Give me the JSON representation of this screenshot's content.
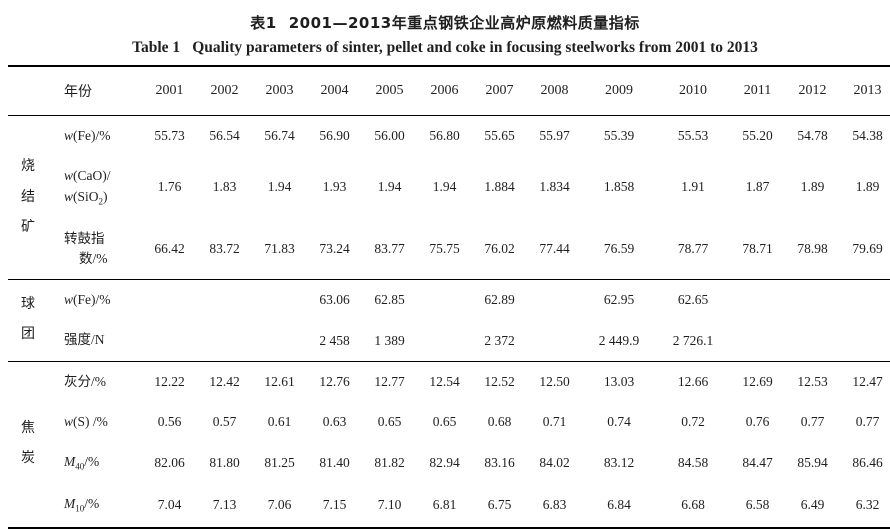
{
  "caption": {
    "zh_prefix": "表1",
    "zh_text": "2001—2013年重点钢铁企业高炉原燃料质量指标",
    "en_prefix": "Table 1",
    "en_text": "Quality parameters of sinter, pellet and coke in focusing steelworks from 2001 to 2013"
  },
  "colors": {
    "text": "#1f1f1f",
    "rule": "#000000",
    "background": "#ffffff"
  },
  "table": {
    "header": {
      "param_label": "年份",
      "years": [
        "2001",
        "2002",
        "2003",
        "2004",
        "2005",
        "2006",
        "2007",
        "2008",
        "2009",
        "2010",
        "2011",
        "2012",
        "2013"
      ]
    },
    "groups": [
      {
        "name": "烧结矿",
        "key": "sinter",
        "rows": [
          {
            "label_lines": [
              {
                "segs": [
                  {
                    "t": "w",
                    "style": "italic"
                  },
                  {
                    "t": "(Fe)/%"
                  }
                ]
              }
            ],
            "values": [
              "55.73",
              "56.54",
              "56.74",
              "56.90",
              "56.00",
              "56.80",
              "55.65",
              "55.97",
              "55.39",
              "55.53",
              "55.20",
              "54.78",
              "54.38"
            ]
          },
          {
            "label_lines": [
              {
                "segs": [
                  {
                    "t": "w",
                    "style": "italic"
                  },
                  {
                    "t": "(CaO)/"
                  }
                ]
              },
              {
                "segs": [
                  {
                    "t": "w",
                    "style": "italic"
                  },
                  {
                    "t": "(SiO"
                  },
                  {
                    "t": "2",
                    "style": "sub"
                  },
                  {
                    "t": ")"
                  }
                ]
              }
            ],
            "values": [
              "1.76",
              "1.83",
              "1.94",
              "1.93",
              "1.94",
              "1.94",
              "1.884",
              "1.834",
              "1.858",
              "1.91",
              "1.87",
              "1.89",
              "1.89"
            ]
          },
          {
            "label_lines": [
              {
                "segs": [
                  {
                    "t": "转鼓指"
                  }
                ]
              },
              {
                "segs": [
                  {
                    "t": "数/%"
                  }
                ],
                "indent": true
              }
            ],
            "values": [
              "66.42",
              "83.72",
              "71.83",
              "73.24",
              "83.77",
              "75.75",
              "76.02",
              "77.44",
              "76.59",
              "78.77",
              "78.71",
              "78.98",
              "79.69"
            ]
          }
        ]
      },
      {
        "name": "球团",
        "key": "pellet",
        "rows": [
          {
            "label_lines": [
              {
                "segs": [
                  {
                    "t": "w",
                    "style": "italic"
                  },
                  {
                    "t": "(Fe)/%"
                  }
                ]
              }
            ],
            "values": [
              "",
              "",
              "",
              "63.06",
              "62.85",
              "",
              "62.89",
              "",
              "62.95",
              "62.65",
              "",
              "",
              ""
            ]
          },
          {
            "label_lines": [
              {
                "segs": [
                  {
                    "t": "强度/N"
                  }
                ]
              }
            ],
            "values": [
              "",
              "",
              "",
              "2 458",
              "1 389",
              "",
              "2 372",
              "",
              "2 449.9",
              "2 726.1",
              "",
              "",
              ""
            ]
          }
        ]
      },
      {
        "name": "焦炭",
        "key": "coke",
        "rows": [
          {
            "label_lines": [
              {
                "segs": [
                  {
                    "t": "灰分/%"
                  }
                ]
              }
            ],
            "values": [
              "12.22",
              "12.42",
              "12.61",
              "12.76",
              "12.77",
              "12.54",
              "12.52",
              "12.50",
              "13.03",
              "12.66",
              "12.69",
              "12.53",
              "12.47"
            ]
          },
          {
            "label_lines": [
              {
                "segs": [
                  {
                    "t": "w",
                    "style": "italic"
                  },
                  {
                    "t": "(S) /%"
                  }
                ]
              }
            ],
            "values": [
              "0.56",
              "0.57",
              "0.61",
              "0.63",
              "0.65",
              "0.65",
              "0.68",
              "0.71",
              "0.74",
              "0.72",
              "0.76",
              "0.77",
              "0.77"
            ]
          },
          {
            "label_lines": [
              {
                "segs": [
                  {
                    "t": "M",
                    "style": "italic"
                  },
                  {
                    "t": "40",
                    "style": "sub"
                  },
                  {
                    "t": "/%"
                  }
                ]
              }
            ],
            "values": [
              "82.06",
              "81.80",
              "81.25",
              "81.40",
              "81.82",
              "82.94",
              "83.16",
              "84.02",
              "83.12",
              "84.58",
              "84.47",
              "85.94",
              "86.46"
            ]
          },
          {
            "label_lines": [
              {
                "segs": [
                  {
                    "t": "M",
                    "style": "italic"
                  },
                  {
                    "t": "10",
                    "style": "sub"
                  },
                  {
                    "t": "/%"
                  }
                ]
              }
            ],
            "values": [
              "7.04",
              "7.13",
              "7.06",
              "7.15",
              "7.10",
              "6.81",
              "6.75",
              "6.83",
              "6.84",
              "6.68",
              "6.58",
              "6.49",
              "6.32"
            ]
          }
        ]
      }
    ]
  }
}
